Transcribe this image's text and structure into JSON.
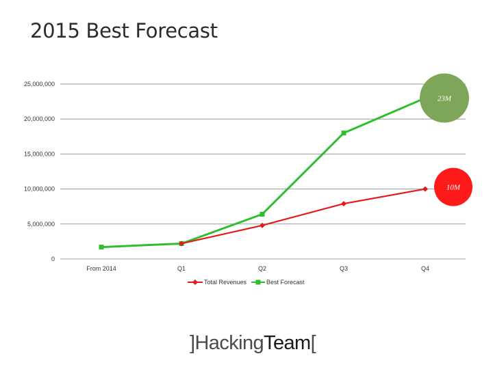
{
  "chart_data": {
    "type": "line",
    "title": "2015 Best Forecast",
    "categories": [
      "From 2014",
      "Q1",
      "Q2",
      "Q3",
      "Q4"
    ],
    "series": [
      {
        "name": "Total Revenues",
        "values": [
          null,
          2200000,
          4800000,
          7900000,
          10000000
        ],
        "color": "#e21b1b",
        "marker": "diamond"
      },
      {
        "name": "Best Forecast",
        "values": [
          1700000,
          2200000,
          6400000,
          18000000,
          23000000
        ],
        "color": "#2dbf2d",
        "marker": "square"
      }
    ],
    "ylim": [
      0,
      25000000
    ],
    "y_ticks": [
      0,
      5000000,
      10000000,
      15000000,
      20000000,
      25000000
    ],
    "y_tick_labels": [
      "0",
      "5,000,000",
      "10,000,000",
      "15,000,000",
      "20,000,000",
      "25,000,000"
    ],
    "grid": true,
    "legend": "bottom",
    "annotations": [
      {
        "text": "23M",
        "series": "Best Forecast",
        "category": "Q4",
        "color": "#7ea65a"
      },
      {
        "text": "10M",
        "series": "Total Revenues",
        "category": "Q4",
        "color": "#ff1a1a"
      }
    ]
  },
  "logo": {
    "bracket_left": "]",
    "part1": "Hacking",
    "part2": "Team",
    "bracket_right": "["
  }
}
